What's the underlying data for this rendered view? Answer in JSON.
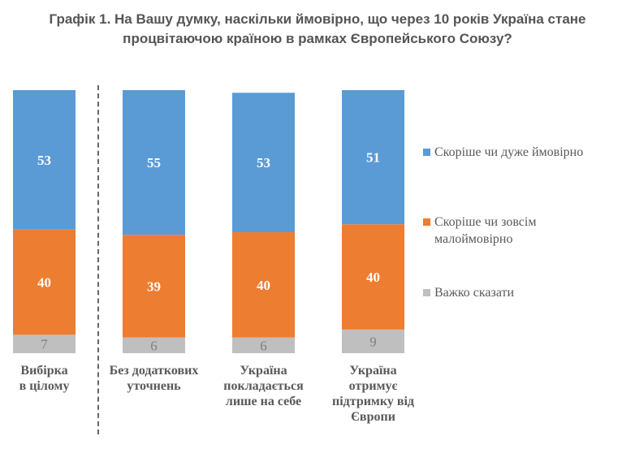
{
  "title": {
    "line1": "Графік 1. На Вашу думку, наскільки ймовірно, що через 10 років Україна стане",
    "line2": "процвітаючою країною в рамках Європейського Союзу?"
  },
  "chart_data": {
    "type": "bar",
    "stacked": true,
    "title": "Графік 1. На Вашу думку, наскільки ймовірно, що через 10 років Україна стане процвітаючою країною в рамках Європейського Союзу?",
    "categories": [
      [
        "Вибірка",
        "в цілому"
      ],
      [
        "Без додаткових",
        "уточнень"
      ],
      [
        "Україна",
        "покладається",
        "лише на себе"
      ],
      [
        "Україна",
        "отримує",
        "підтримку від",
        "Європи"
      ]
    ],
    "series": [
      {
        "name": "Скоріше чи дуже ймовірно",
        "color": "#5B9BD5",
        "values": [
          53,
          55,
          53,
          51
        ]
      },
      {
        "name": "Скоріше чи зовсім малоймовірно",
        "color": "#ED7D31",
        "values": [
          40,
          39,
          40,
          40
        ]
      },
      {
        "name": "Важко сказати",
        "color": "#BFBFBF",
        "values": [
          7,
          6,
          6,
          9
        ]
      }
    ],
    "legend": [
      {
        "label_lines": [
          "Скоріше чи дуже ймовірно"
        ],
        "color": "#5B9BD5"
      },
      {
        "label_lines": [
          "Скоріше чи зовсім",
          "малоймовірно"
        ],
        "color": "#ED7D31"
      },
      {
        "label_lines": [
          "Важко сказати"
        ],
        "color": "#BFBFBF"
      }
    ],
    "legend_position": "right",
    "ylim": [
      0,
      100
    ],
    "grid": false,
    "separator_after_category": 0
  }
}
